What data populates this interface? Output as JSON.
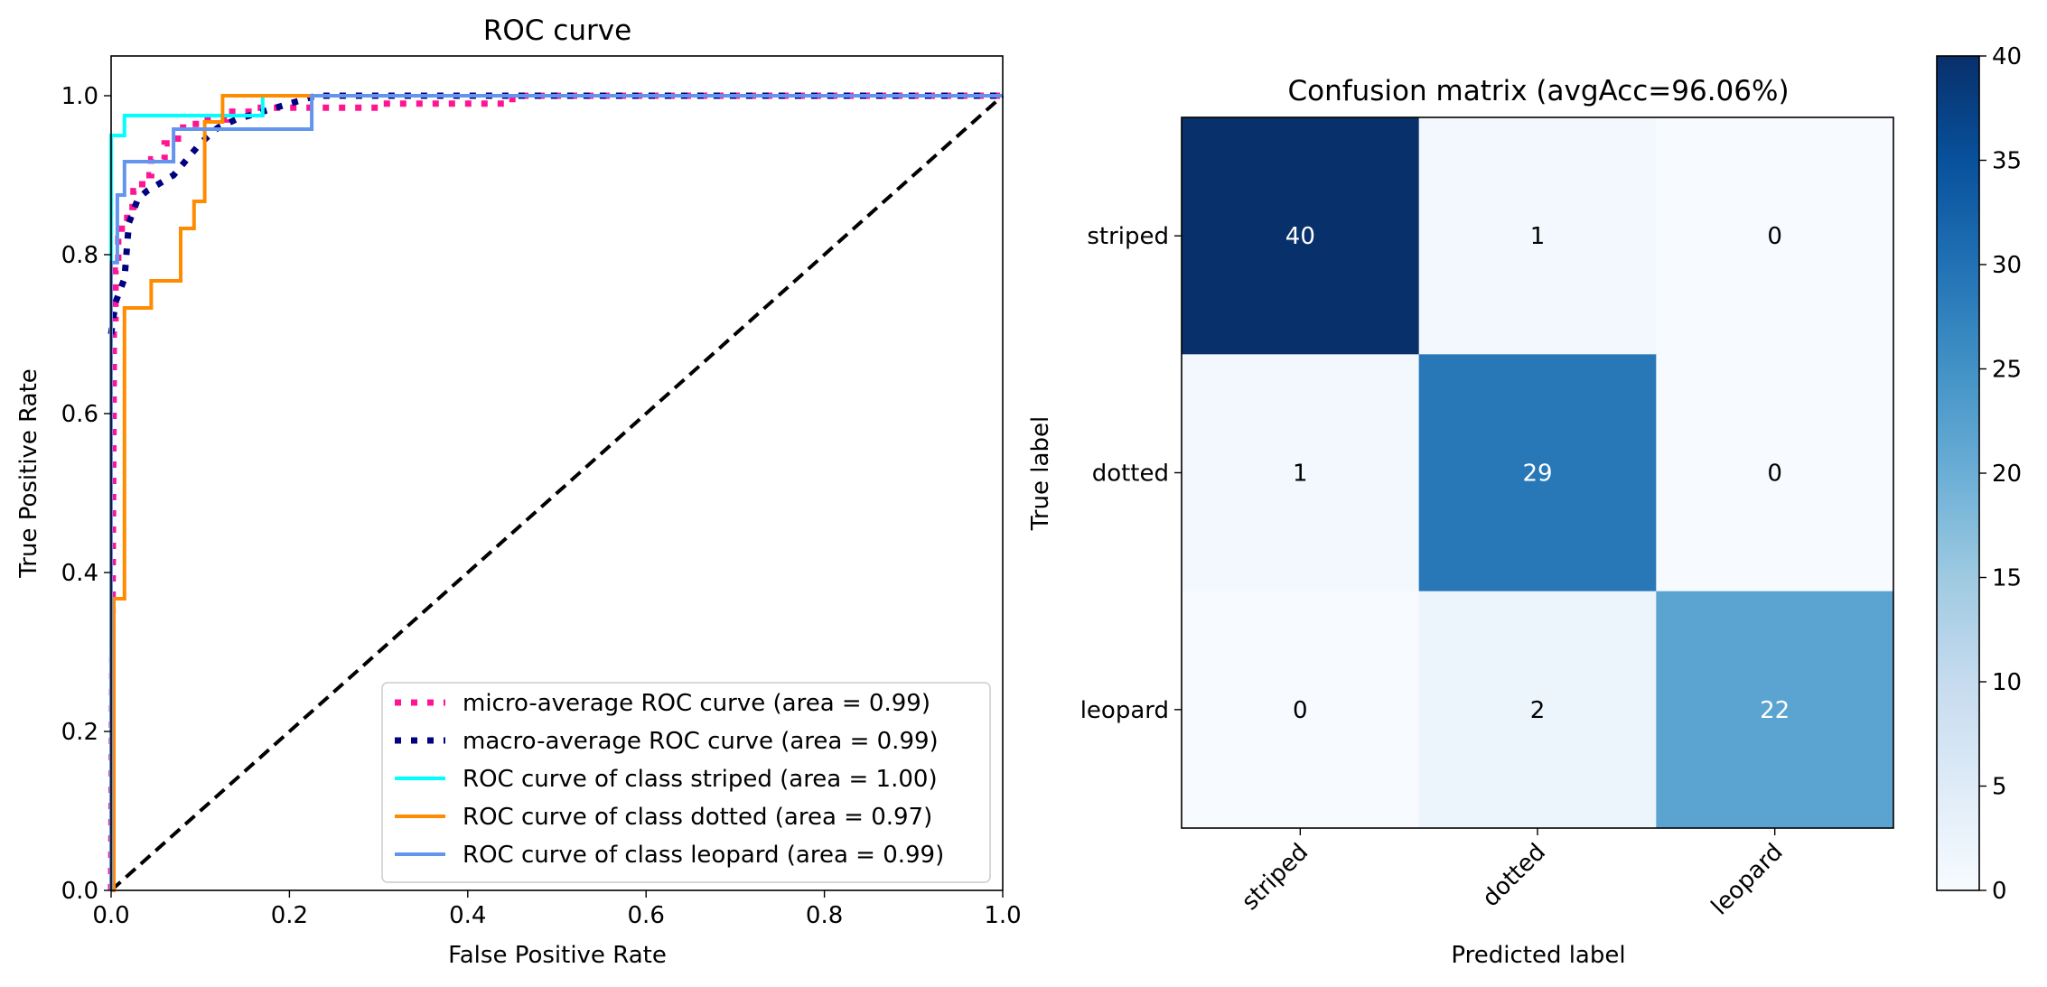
{
  "chart_data": [
    {
      "type": "line",
      "title": "ROC curve",
      "xlabel": "False Positive Rate",
      "ylabel": "True Positive Rate",
      "xlim": [
        0.0,
        1.0
      ],
      "ylim": [
        0.0,
        1.05
      ],
      "xticks": [
        "0.0",
        "0.2",
        "0.4",
        "0.6",
        "0.8",
        "1.0"
      ],
      "yticks": [
        "0.0",
        "0.2",
        "0.4",
        "0.6",
        "0.8",
        "1.0"
      ],
      "legend_position": "lower-right",
      "series": [
        {
          "name": "micro-average ROC curve (area = 0.99)",
          "color": "#ff1493",
          "style": "dotted",
          "x": [
            0,
            0.003,
            0.003,
            0.005,
            0.005,
            0.008,
            0.008,
            0.012,
            0.012,
            0.018,
            0.018,
            0.025,
            0.025,
            0.035,
            0.035,
            0.045,
            0.045,
            0.06,
            0.06,
            0.075,
            0.075,
            0.095,
            0.095,
            0.13,
            0.13,
            0.16,
            0.16,
            0.3,
            0.3,
            0.45,
            0.45,
            1.0
          ],
          "y": [
            0,
            0.65,
            0.72,
            0.72,
            0.78,
            0.78,
            0.82,
            0.82,
            0.84,
            0.84,
            0.86,
            0.86,
            0.88,
            0.88,
            0.9,
            0.9,
            0.92,
            0.92,
            0.94,
            0.94,
            0.96,
            0.96,
            0.97,
            0.97,
            0.98,
            0.98,
            0.985,
            0.985,
            0.99,
            0.99,
            1.0,
            1.0
          ]
        },
        {
          "name": "macro-average ROC curve (area = 0.99)",
          "color": "#000080",
          "style": "dotted",
          "x": [
            0,
            0.005,
            0.015,
            0.02,
            0.03,
            0.04,
            0.055,
            0.07,
            0.085,
            0.1,
            0.12,
            0.14,
            0.17,
            0.2,
            0.23,
            0.3,
            0.5,
            1.0
          ],
          "y": [
            0.7,
            0.74,
            0.77,
            0.84,
            0.87,
            0.88,
            0.89,
            0.9,
            0.92,
            0.94,
            0.96,
            0.97,
            0.98,
            0.99,
            1.0,
            1.0,
            1.0,
            1.0
          ]
        },
        {
          "name": "ROC curve of class striped (area = 1.00)",
          "color": "#00ffff",
          "style": "solid",
          "x": [
            0,
            0,
            0.015,
            0.015,
            0.045,
            0.045,
            0.17,
            0.17,
            1.0
          ],
          "y": [
            0,
            0.95,
            0.95,
            0.975,
            0.975,
            0.975,
            0.975,
            1.0,
            1.0
          ]
        },
        {
          "name": "ROC curve of class dotted (area = 0.97)",
          "color": "#ff8c00",
          "style": "solid",
          "x": [
            0,
            0.003,
            0.003,
            0.015,
            0.015,
            0.045,
            0.045,
            0.078,
            0.078,
            0.093,
            0.093,
            0.105,
            0.105,
            0.125,
            0.125,
            1.0
          ],
          "y": [
            0,
            0,
            0.367,
            0.367,
            0.733,
            0.733,
            0.767,
            0.767,
            0.833,
            0.833,
            0.867,
            0.867,
            0.967,
            0.967,
            1.0,
            1.0
          ]
        },
        {
          "name": "ROC curve of class leopard (area = 0.99)",
          "color": "#6495ed",
          "style": "solid",
          "x": [
            0,
            0,
            0.007,
            0.007,
            0.015,
            0.015,
            0.07,
            0.07,
            0.225,
            0.225,
            1.0
          ],
          "y": [
            0,
            0.79,
            0.79,
            0.875,
            0.875,
            0.917,
            0.917,
            0.958,
            0.958,
            1.0,
            1.0
          ]
        }
      ],
      "reference_line": {
        "x": [
          0,
          1
        ],
        "y": [
          0,
          1
        ],
        "color": "#000000",
        "style": "dashed"
      }
    },
    {
      "type": "heatmap",
      "title": "Confusion matrix (avgAcc=96.06%)",
      "xlabel": "Predicted label",
      "ylabel": "True label",
      "x_categories": [
        "striped",
        "dotted",
        "leopard"
      ],
      "y_categories": [
        "striped",
        "dotted",
        "leopard"
      ],
      "values": [
        [
          40,
          1,
          0
        ],
        [
          1,
          29,
          0
        ],
        [
          0,
          2,
          22
        ]
      ],
      "cell_labels": [
        [
          "40",
          "1",
          "0"
        ],
        [
          "1",
          "29",
          "0"
        ],
        [
          "0",
          "2",
          "22"
        ]
      ],
      "colormap": "Blues",
      "colorbar_range": [
        0,
        40
      ],
      "colorbar_ticks": [
        "0",
        "5",
        "10",
        "15",
        "20",
        "25",
        "30",
        "35",
        "40"
      ]
    }
  ]
}
